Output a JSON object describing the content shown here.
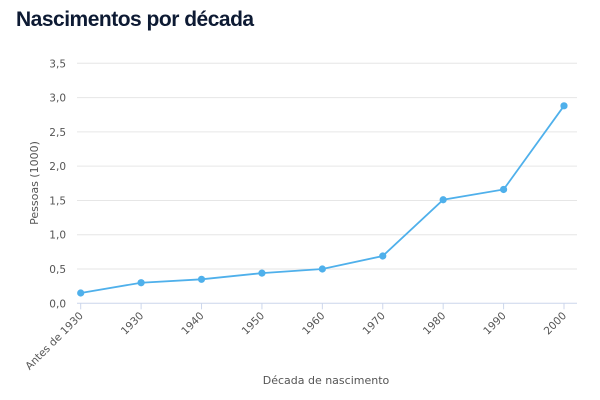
{
  "chart_data": {
    "type": "line",
    "title": "Nascimentos por década",
    "xlabel": "Década de nascimento",
    "ylabel": "Pessoas (1000)",
    "categories": [
      "Antes de 1930",
      "1930",
      "1940",
      "1950",
      "1960",
      "1970",
      "1980",
      "1990",
      "2000"
    ],
    "series": [
      {
        "values": [
          0.15,
          0.3,
          0.35,
          0.44,
          0.5,
          0.69,
          1.51,
          1.66,
          2.88
        ]
      }
    ],
    "ylim": [
      0,
      3.5
    ],
    "yticks": [
      "0,0",
      "0,5",
      "1,0",
      "1,5",
      "2,0",
      "2,5",
      "3,0",
      "3,5"
    ],
    "grid": true,
    "legend": "none",
    "color": "#4fb0eb"
  }
}
